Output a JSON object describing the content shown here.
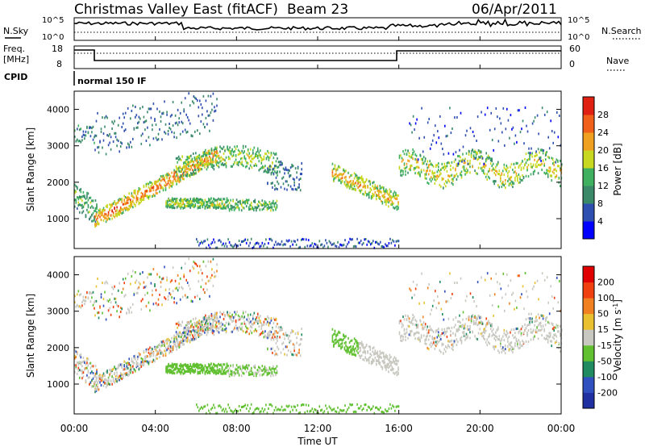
{
  "header": {
    "title": "Christmas Valley East (fitACF)",
    "beam": "Beam 23",
    "date": "06/Apr/2011"
  },
  "small_panels": {
    "nsky": {
      "label": "N.Sky",
      "ticks": [
        "10^5",
        "10^0"
      ]
    },
    "nsearch": {
      "label": "N.Search",
      "ticks": [
        "10^5",
        "10^0"
      ]
    },
    "freq": {
      "label_line1": "Freq.",
      "label_line2": "[MHz]",
      "ticks": [
        "18",
        "8"
      ]
    },
    "nave": {
      "label": "Nave",
      "ticks": [
        "60",
        "0"
      ]
    },
    "cpid": {
      "label": "CPID",
      "value": "normal 150 IF"
    }
  },
  "chart_data": [
    {
      "type": "heatmap",
      "name": "power",
      "ylabel": "Slant Range [km]",
      "xlabel": "",
      "yticks": [
        1000,
        2000,
        3000,
        4000
      ],
      "ylim": [
        180,
        4500
      ],
      "xlim": [
        0,
        24
      ],
      "colorbar": {
        "label": "Power [dB]",
        "ticks": [
          "4",
          "8",
          "12",
          "16",
          "20",
          "24",
          "28"
        ],
        "colors": [
          "#0000ff",
          "#2f4fb0",
          "#3a8a6a",
          "#3fb060",
          "#c8d820",
          "#f0a020",
          "#f06018",
          "#e02010"
        ]
      }
    },
    {
      "type": "heatmap",
      "name": "velocity",
      "ylabel": "Slant Range [km]",
      "xlabel": "Time UT",
      "xticks": [
        "00:00",
        "04:00",
        "08:00",
        "12:00",
        "16:00",
        "20:00",
        "00:00"
      ],
      "yticks": [
        1000,
        2000,
        3000,
        4000
      ],
      "ylim": [
        180,
        4500
      ],
      "xlim": [
        0,
        24
      ],
      "colorbar": {
        "label": "Velocity [m s",
        "label_sup": "-1",
        "label_end": "]",
        "ticks": [
          "200",
          "100",
          "50",
          "15",
          "-15",
          "-50",
          "-100",
          "-200"
        ],
        "colors": [
          "#2030a0",
          "#3050c0",
          "#208a60",
          "#60c030",
          "#c8c8c0",
          "#e8c030",
          "#f08020",
          "#f04010",
          "#e00000"
        ]
      }
    }
  ]
}
